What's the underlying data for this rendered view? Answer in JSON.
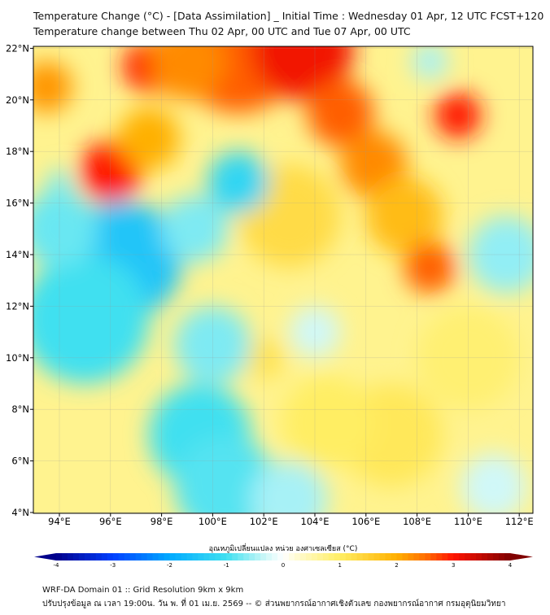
{
  "header": {
    "title": "Temperature Change (°C) - [Data Assimilation] _ Initial Time : Wednesday 01 Apr, 12 UTC FCST+120",
    "subtitle": "Temperature change between Thu 02 Apr, 00 UTC and Tue 07 Apr, 00 UTC"
  },
  "chart_data": {
    "type": "heatmap",
    "variable": "Temperature change (°C)",
    "lon_range": [
      93,
      112.5
    ],
    "lat_range": [
      4,
      22
    ],
    "lon_ticks": [
      94,
      96,
      98,
      100,
      102,
      104,
      106,
      108,
      110,
      112
    ],
    "lon_labels": [
      "94°E",
      "96°E",
      "98°E",
      "100°E",
      "102°E",
      "104°E",
      "106°E",
      "108°E",
      "110°E",
      "112°E"
    ],
    "lat_ticks": [
      4,
      6,
      8,
      10,
      12,
      14,
      16,
      18,
      20,
      22
    ],
    "lat_labels": [
      "4°N",
      "6°N",
      "8°N",
      "10°N",
      "12°N",
      "14°N",
      "16°N",
      "18°N",
      "20°N",
      "22°N"
    ],
    "background_value": 0.7,
    "features": [
      {
        "lon": 101,
        "lat": 22,
        "value": 2.6,
        "r": 2.5
      },
      {
        "lon": 103.5,
        "lat": 22,
        "value": 3.1,
        "r": 2
      },
      {
        "lon": 97.5,
        "lat": 21.3,
        "value": 3,
        "r": 1
      },
      {
        "lon": 99,
        "lat": 21.5,
        "value": 2.3,
        "r": 1.5
      },
      {
        "lon": 96,
        "lat": 17.2,
        "value": 3,
        "r": 1.2
      },
      {
        "lon": 97.5,
        "lat": 18.5,
        "value": 2,
        "r": 1.2
      },
      {
        "lon": 93.5,
        "lat": 20.5,
        "value": 2.2,
        "r": 1
      },
      {
        "lon": 105,
        "lat": 19.5,
        "value": 2.6,
        "r": 1.3
      },
      {
        "lon": 106.3,
        "lat": 17.5,
        "value": 2.3,
        "r": 1.3
      },
      {
        "lon": 107.5,
        "lat": 15.5,
        "value": 1.8,
        "r": 1.5
      },
      {
        "lon": 109.6,
        "lat": 19.4,
        "value": 3,
        "r": 0.9
      },
      {
        "lon": 108.5,
        "lat": 13.5,
        "value": 2.6,
        "r": 1
      },
      {
        "lon": 103,
        "lat": 15.5,
        "value": 1.3,
        "r": 2
      },
      {
        "lon": 107,
        "lat": 7,
        "value": 1.1,
        "r": 2
      },
      {
        "lon": 104.5,
        "lat": 7.5,
        "value": 1,
        "r": 1.8
      },
      {
        "lon": 110,
        "lat": 10,
        "value": 0.9,
        "r": 2
      },
      {
        "lon": 102,
        "lat": 10,
        "value": 1.2,
        "r": 0.8
      },
      {
        "lon": 96.5,
        "lat": 13.8,
        "value": -1.5,
        "r": 2.3
      },
      {
        "lon": 95,
        "lat": 11.5,
        "value": -1,
        "r": 2.5
      },
      {
        "lon": 94,
        "lat": 15,
        "value": -0.8,
        "r": 1.5
      },
      {
        "lon": 101,
        "lat": 16.8,
        "value": -1.2,
        "r": 1.2
      },
      {
        "lon": 99.3,
        "lat": 15,
        "value": -0.7,
        "r": 1.3
      },
      {
        "lon": 100,
        "lat": 10.5,
        "value": -0.7,
        "r": 1.5
      },
      {
        "lon": 99.5,
        "lat": 7,
        "value": -1,
        "r": 2
      },
      {
        "lon": 100.5,
        "lat": 5,
        "value": -0.9,
        "r": 2
      },
      {
        "lon": 103,
        "lat": 4.5,
        "value": -0.5,
        "r": 1.5
      },
      {
        "lon": 111.5,
        "lat": 14,
        "value": -0.6,
        "r": 1.5
      },
      {
        "lon": 111,
        "lat": 5,
        "value": -0.3,
        "r": 1.3
      },
      {
        "lon": 108.5,
        "lat": 21.5,
        "value": -0.5,
        "r": 0.7
      },
      {
        "lon": 94,
        "lat": 16.8,
        "value": -0.7,
        "r": 0.5
      },
      {
        "lon": 104,
        "lat": 11,
        "value": -0.3,
        "r": 1
      }
    ],
    "colorbar": {
      "label": "อุณหภูมิเปลี่ยนแปลง หน่วย องศาเซลเซียส (°C)",
      "range": [
        -4,
        4
      ],
      "ticks": [
        "-4",
        "-3",
        "-2",
        "-1",
        "0",
        "1",
        "2",
        "3",
        "4"
      ]
    }
  },
  "footer": {
    "line1": "WRF-DA Domain 01 :: Grid Resolution 9km x 9km",
    "line2": "ปรับปรุงข้อมูล ณ เวลา 19:00น. วัน พ. ที่ 01 เม.ย. 2569 -- © ส่วนพยากรณ์อากาศเชิงตัวเลข กองพยากรณ์อากาศ กรมอุตุนิยมวิทยา"
  }
}
